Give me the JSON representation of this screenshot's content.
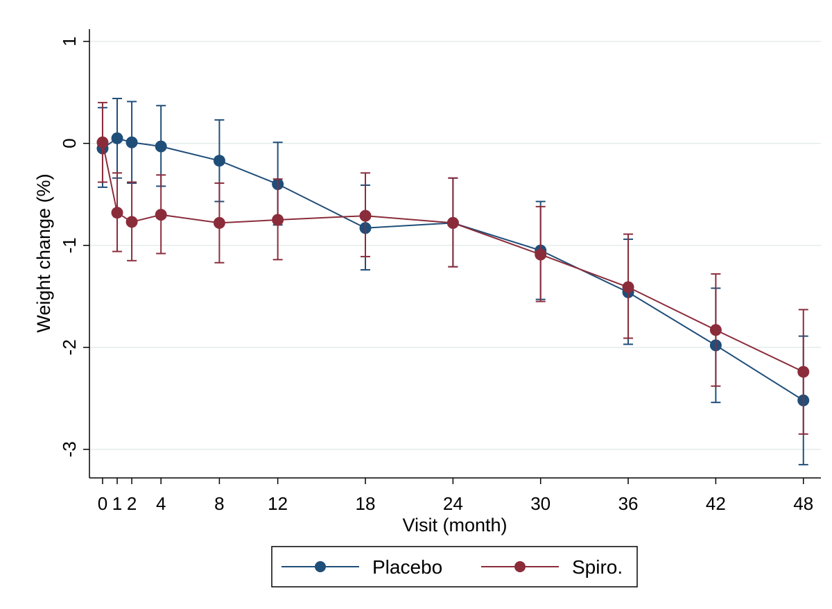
{
  "chart_data": {
    "type": "line",
    "xlabel": "Visit (month)",
    "ylabel": "Weight change (%)",
    "x": [
      0,
      1,
      2,
      4,
      8,
      12,
      18,
      24,
      30,
      36,
      42,
      48
    ],
    "x_ticks": [
      0,
      1,
      2,
      4,
      8,
      12,
      18,
      24,
      30,
      36,
      42,
      48
    ],
    "x_tick_labels": [
      "0",
      "1",
      "2",
      "4",
      "8",
      "12",
      "18",
      "24",
      "30",
      "36",
      "42",
      "48"
    ],
    "xlim": [
      -0.9,
      49.2
    ],
    "y_ticks": [
      1,
      0,
      -1,
      -2,
      -3
    ],
    "y_tick_labels": [
      "1",
      "0",
      "-1",
      "-2",
      "-3"
    ],
    "ylim": [
      -3.28,
      1.12
    ],
    "grid": "horizontal",
    "legend_position": "bottom",
    "series": [
      {
        "name": "Placebo",
        "color": "#1f4e79",
        "y": [
          -0.05,
          0.05,
          0.01,
          -0.03,
          -0.17,
          -0.4,
          -0.83,
          -0.78,
          -1.05,
          -1.46,
          -1.98,
          -2.52
        ],
        "lower": [
          -0.43,
          -0.34,
          -0.39,
          -0.42,
          -0.57,
          -0.8,
          -1.24,
          -1.21,
          -1.53,
          -1.97,
          -2.54,
          -3.15
        ],
        "upper": [
          0.35,
          0.44,
          0.41,
          0.37,
          0.23,
          0.01,
          -0.41,
          -0.34,
          -0.57,
          -0.94,
          -1.42,
          -1.89
        ]
      },
      {
        "name": "Spiro.",
        "color": "#8b2c3b",
        "y": [
          0.01,
          -0.68,
          -0.77,
          -0.7,
          -0.78,
          -0.75,
          -0.71,
          -0.78,
          -1.09,
          -1.41,
          -1.83,
          -2.24
        ],
        "lower": [
          -0.38,
          -1.06,
          -1.15,
          -1.08,
          -1.17,
          -1.14,
          -1.11,
          -1.21,
          -1.55,
          -1.91,
          -2.38,
          -2.85
        ],
        "upper": [
          0.4,
          -0.29,
          -0.38,
          -0.31,
          -0.39,
          -0.35,
          -0.29,
          -0.34,
          -0.62,
          -0.89,
          -1.28,
          -1.63
        ]
      }
    ]
  }
}
